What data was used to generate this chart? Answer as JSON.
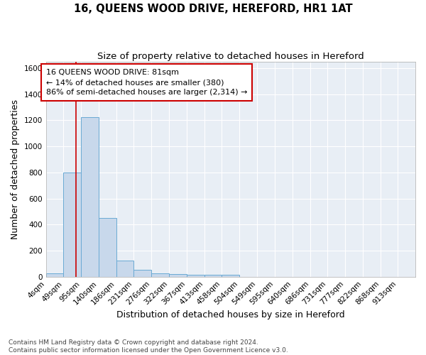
{
  "title": "16, QUEENS WOOD DRIVE, HEREFORD, HR1 1AT",
  "subtitle": "Size of property relative to detached houses in Hereford",
  "xlabel": "Distribution of detached houses by size in Hereford",
  "ylabel": "Number of detached properties",
  "bin_labels": [
    "4sqm",
    "49sqm",
    "95sqm",
    "140sqm",
    "186sqm",
    "231sqm",
    "276sqm",
    "322sqm",
    "367sqm",
    "413sqm",
    "458sqm",
    "504sqm",
    "549sqm",
    "595sqm",
    "640sqm",
    "686sqm",
    "731sqm",
    "777sqm",
    "822sqm",
    "868sqm",
    "913sqm"
  ],
  "bin_edges": [
    4,
    49,
    95,
    140,
    186,
    231,
    276,
    322,
    367,
    413,
    458,
    504,
    549,
    595,
    640,
    686,
    731,
    777,
    822,
    868,
    913,
    958
  ],
  "bar_heights": [
    25,
    800,
    1225,
    450,
    125,
    55,
    25,
    20,
    15,
    15,
    15,
    0,
    0,
    0,
    0,
    0,
    0,
    0,
    0,
    0,
    0
  ],
  "bar_color": "#c8d8eb",
  "bar_edge_color": "#6aaad4",
  "property_size": 81,
  "vline_color": "#cc0000",
  "annotation_line1": "16 QUEENS WOOD DRIVE: 81sqm",
  "annotation_line2": "← 14% of detached houses are smaller (380)",
  "annotation_line3": "86% of semi-detached houses are larger (2,314) →",
  "annotation_box_color": "#ffffff",
  "annotation_border_color": "#cc0000",
  "ylim": [
    0,
    1650
  ],
  "yticks": [
    0,
    200,
    400,
    600,
    800,
    1000,
    1200,
    1400,
    1600
  ],
  "footer_text": "Contains HM Land Registry data © Crown copyright and database right 2024.\nContains public sector information licensed under the Open Government Licence v3.0.",
  "fig_bg_color": "#ffffff",
  "plot_bg_color": "#e8eef5",
  "grid_color": "#ffffff",
  "title_fontsize": 10.5,
  "subtitle_fontsize": 9.5,
  "axis_label_fontsize": 9,
  "tick_fontsize": 7.5,
  "annotation_fontsize": 8,
  "footer_fontsize": 6.5
}
